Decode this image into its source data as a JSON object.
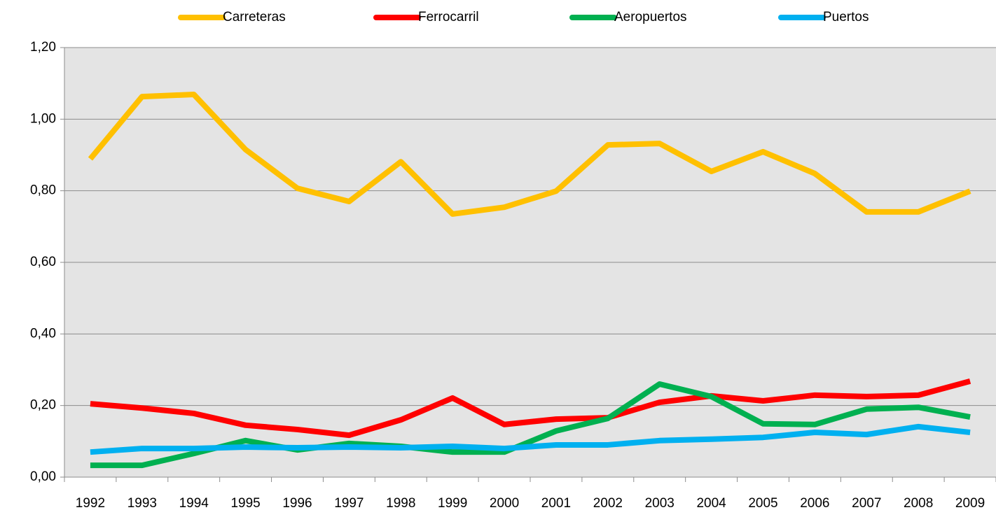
{
  "chart_data": {
    "type": "line",
    "categories": [
      "1992",
      "1993",
      "1994",
      "1995",
      "1996",
      "1997",
      "1998",
      "1999",
      "2000",
      "2001",
      "2002",
      "2003",
      "2004",
      "2005",
      "2006",
      "2007",
      "2008",
      "2009"
    ],
    "series": [
      {
        "name": "Carreteras",
        "color": "#ffc000",
        "values": [
          0.889,
          1.063,
          1.069,
          0.915,
          0.807,
          0.77,
          0.881,
          0.735,
          0.754,
          0.799,
          0.928,
          0.932,
          0.854,
          0.909,
          0.848,
          0.741,
          0.741,
          0.799
        ]
      },
      {
        "name": "Ferrocarril",
        "color": "#ff0000",
        "values": [
          0.205,
          0.193,
          0.178,
          0.145,
          0.133,
          0.117,
          0.16,
          0.221,
          0.147,
          0.162,
          0.166,
          0.209,
          0.227,
          0.213,
          0.229,
          0.225,
          0.229,
          0.268
        ]
      },
      {
        "name": "Aeropuertos",
        "color": "#00b050",
        "values": [
          0.033,
          0.033,
          0.066,
          0.102,
          0.076,
          0.094,
          0.086,
          0.07,
          0.07,
          0.129,
          0.164,
          0.26,
          0.225,
          0.149,
          0.147,
          0.19,
          0.195,
          0.168
        ]
      },
      {
        "name": "Puertos",
        "color": "#00b0f0",
        "values": [
          0.07,
          0.08,
          0.08,
          0.084,
          0.082,
          0.084,
          0.082,
          0.086,
          0.08,
          0.09,
          0.09,
          0.102,
          0.106,
          0.111,
          0.125,
          0.119,
          0.141,
          0.125
        ]
      }
    ],
    "ylim": [
      0,
      1.2
    ],
    "yticks": [
      {
        "value": 0,
        "label": "0,00"
      },
      {
        "value": 0.2,
        "label": "0,20"
      },
      {
        "value": 0.4,
        "label": "0,40"
      },
      {
        "value": 0.6,
        "label": "0,60"
      },
      {
        "value": 0.8,
        "label": "0,80"
      },
      {
        "value": 1.0,
        "label": "1,00"
      },
      {
        "value": 1.2,
        "label": "1,20"
      }
    ],
    "grid": true,
    "legend": "top"
  }
}
